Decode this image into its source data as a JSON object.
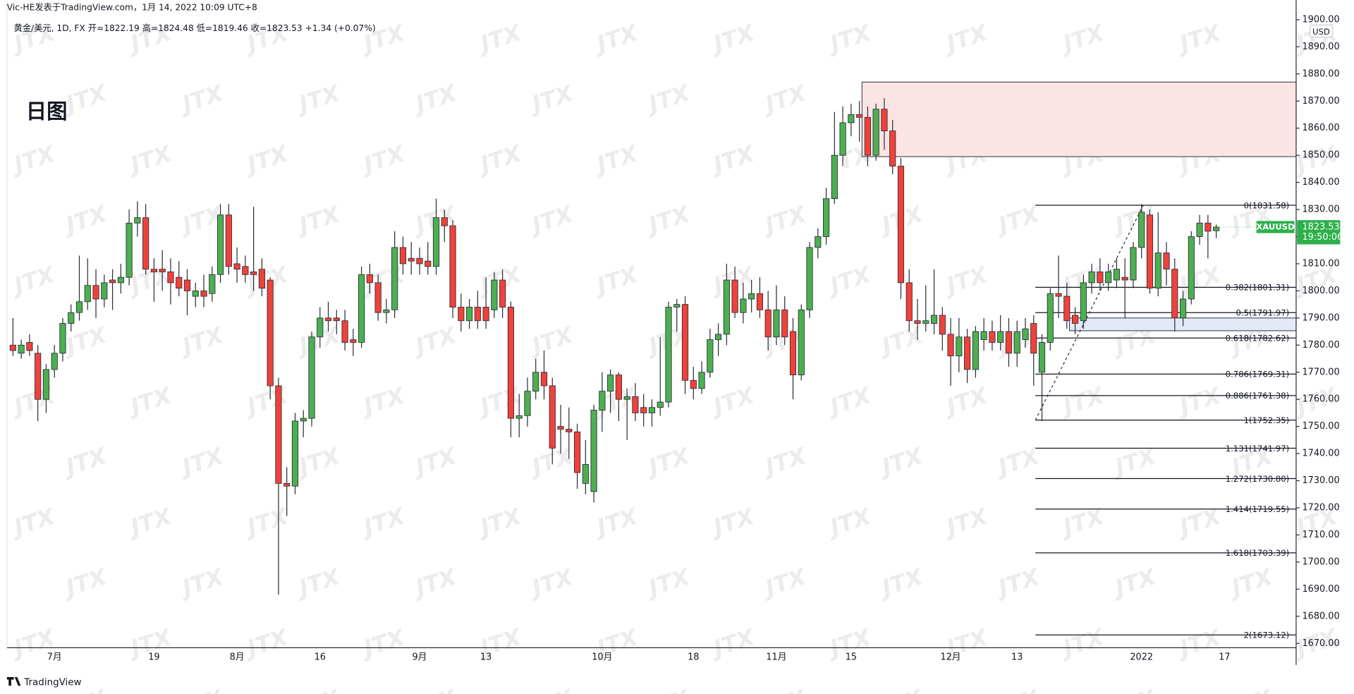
{
  "header": {
    "author_line": "Vic-HE发表于TradingView.com，1月 14, 2022 10:09 UTC+8",
    "symbol_line": "黄金/美元, 1D, FX  开=1822.19  高=1824.48  低=1819.46  收=1823.53  +1.34 (+0.07%)",
    "chart_label": "日图",
    "currency": "USD",
    "watermark": "JTX",
    "brand": "TradingView"
  },
  "chart_data": {
    "type": "candlestick",
    "categories": [
      null,
      null,
      null,
      null,
      null,
      "7月",
      null,
      null,
      null,
      null,
      null,
      null,
      null,
      null,
      null,
      null,
      null,
      "19",
      null,
      null,
      null,
      null,
      null,
      null,
      null,
      null,
      null,
      "8月",
      null,
      null,
      null,
      null,
      null,
      null,
      null,
      null,
      null,
      "16",
      null,
      null,
      null,
      null,
      null,
      null,
      null,
      null,
      null,
      null,
      null,
      "9月",
      null,
      null,
      null,
      null,
      null,
      null,
      null,
      "13",
      null,
      null,
      null,
      null,
      null,
      null,
      null,
      null,
      null,
      null,
      null,
      null,
      null,
      "10月",
      null,
      null,
      null,
      null,
      null,
      null,
      null,
      null,
      null,
      null,
      "18",
      null,
      null,
      null,
      null,
      null,
      null,
      null,
      null,
      null,
      "11月",
      null,
      null,
      null,
      null,
      null,
      null,
      null,
      null,
      "15",
      null,
      null,
      null,
      null,
      null,
      null,
      null,
      null,
      null,
      null,
      null,
      "12月",
      null,
      null,
      null,
      null,
      null,
      null,
      null,
      "13",
      null,
      null,
      null,
      null,
      null,
      null,
      null,
      null,
      null,
      null,
      null,
      null,
      null,
      null,
      "2022",
      null,
      null,
      null,
      null,
      null,
      null,
      null,
      null,
      null,
      "17"
    ],
    "open": [
      1780,
      1777,
      1781,
      1777,
      1760,
      1771,
      1777,
      1788,
      1792,
      1796,
      1802,
      1797,
      1804,
      1803,
      1805,
      1825,
      1827,
      1808,
      1808,
      1807,
      1805,
      1804,
      1798,
      1800,
      1799,
      1806,
      1828,
      1810,
      1809,
      1807,
      1808,
      1804,
      1765,
      1729,
      1728,
      1752,
      1753,
      1783,
      1790,
      1790,
      1789,
      1782,
      1781,
      1806,
      1803,
      1792,
      1793,
      1816,
      1812,
      1812,
      1811,
      1809,
      1827,
      1824,
      1794,
      1789,
      1794,
      1794,
      1793,
      1804,
      1794,
      1753,
      1754,
      1763,
      1770,
      1765,
      1750,
      1749,
      1748,
      1729,
      1726,
      1756,
      1763,
      1769,
      1760,
      1761,
      1757,
      1755,
      1757,
      1759,
      1794,
      1795,
      1767,
      1764,
      1770,
      1782,
      1784,
      1804,
      1792,
      1797,
      1799,
      1793,
      1783,
      1793,
      1785,
      1769,
      1793,
      1816,
      1820,
      1834,
      1850,
      1862,
      1865,
      1864,
      1850,
      1867,
      1859,
      1846,
      1803,
      1789,
      1788,
      1788,
      1791,
      1784,
      1776,
      1783,
      1771,
      1782,
      1785,
      1781,
      1785,
      1777,
      1782,
      1788,
      1770,
      1781,
      1799,
      1798,
      1791,
      1789,
      1803,
      1807,
      1803,
      1804,
      1805,
      1804,
      1816,
      1828,
      1801,
      1814,
      1808,
      1790,
      1797,
      1820,
      1825,
      1822.19,
      null
    ],
    "high": [
      1790,
      1782,
      1784,
      1780,
      1773,
      1780,
      1790,
      1795,
      1813,
      1812,
      1808,
      1806,
      1808,
      1810,
      1830,
      1833,
      1832,
      1812,
      1815,
      1812,
      1811,
      1808,
      1803,
      1806,
      1809,
      1832,
      1832,
      1816,
      1813,
      1831,
      1812,
      1805,
      1768,
      1735,
      1755,
      1756,
      1785,
      1794,
      1796,
      1793,
      1793,
      1786,
      1809,
      1810,
      1806,
      1797,
      1822,
      1820,
      1818,
      1816,
      1818,
      1834,
      1830,
      1826,
      1799,
      1797,
      1800,
      1805,
      1807,
      1808,
      1796,
      1762,
      1768,
      1775,
      1778,
      1768,
      1758,
      1757,
      1751,
      1745,
      1758,
      1770,
      1771,
      1770,
      1764,
      1766,
      1762,
      1760,
      1783,
      1796,
      1797,
      1798,
      1772,
      1774,
      1786,
      1788,
      1810,
      1809,
      1803,
      1804,
      1805,
      1800,
      1802,
      1798,
      1790,
      1795,
      1818,
      1823,
      1838,
      1866,
      1868,
      1869,
      1870,
      1868,
      1869,
      1871,
      1863,
      1849,
      1808,
      1797,
      1802,
      1808,
      1794,
      1790,
      1790,
      1786,
      1787,
      1790,
      1789,
      1791,
      1790,
      1789,
      1790,
      1791,
      1784,
      1801,
      1813,
      1803,
      1794,
      1806,
      1810,
      1812,
      1810,
      1812,
      1812,
      1818,
      1832,
      1830,
      1829,
      1818,
      1812,
      1800,
      1822,
      1828,
      1828,
      1824.48,
      null
    ],
    "low": [
      1776,
      1775,
      1776,
      1752,
      1755,
      1768,
      1774,
      1785,
      1789,
      1793,
      1790,
      1794,
      1793,
      1799,
      1802,
      1820,
      1806,
      1796,
      1800,
      1795,
      1798,
      1791,
      1794,
      1794,
      1796,
      1803,
      1806,
      1803,
      1803,
      1800,
      1798,
      1760,
      1688,
      1717,
      1725,
      1746,
      1750,
      1779,
      1785,
      1784,
      1778,
      1776,
      1779,
      1799,
      1789,
      1788,
      1790,
      1806,
      1806,
      1806,
      1806,
      1806,
      1818,
      1790,
      1785,
      1786,
      1786,
      1786,
      1790,
      1790,
      1746,
      1746,
      1750,
      1760,
      1760,
      1736,
      1740,
      1738,
      1727,
      1725,
      1722,
      1748,
      1755,
      1752,
      1745,
      1752,
      1750,
      1750,
      1754,
      1757,
      1785,
      1762,
      1760,
      1762,
      1768,
      1776,
      1780,
      1790,
      1788,
      1792,
      1790,
      1778,
      1780,
      1780,
      1760,
      1767,
      1790,
      1812,
      1817,
      1832,
      1846,
      1857,
      1855,
      1846,
      1848,
      1852,
      1843,
      1797,
      1785,
      1782,
      1785,
      1784,
      1778,
      1765,
      1770,
      1766,
      1768,
      1778,
      1778,
      1778,
      1772,
      1772,
      1779,
      1765,
      1752,
      1778,
      1790,
      1786,
      1784,
      1786,
      1799,
      1800,
      1800,
      1801,
      1790,
      1801,
      1812,
      1799,
      1798,
      1802,
      1785,
      1787,
      1795,
      1817,
      1812,
      1819.46,
      null
    ],
    "close": [
      1778,
      1780,
      1778,
      1760,
      1771,
      1777,
      1788,
      1792,
      1796,
      1802,
      1797,
      1803,
      1803,
      1805,
      1825,
      1827,
      1808,
      1807,
      1807,
      1803,
      1801,
      1800,
      1800,
      1798,
      1806,
      1828,
      1809,
      1808,
      1806,
      1806,
      1801,
      1765,
      1729,
      1728,
      1752,
      1753,
      1783,
      1790,
      1789,
      1789,
      1781,
      1781,
      1806,
      1803,
      1792,
      1793,
      1816,
      1810,
      1811,
      1810,
      1809,
      1827,
      1824,
      1794,
      1789,
      1794,
      1789,
      1789,
      1804,
      1794,
      1753,
      1754,
      1763,
      1770,
      1765,
      1742,
      1749,
      1748,
      1733,
      1736,
      1756,
      1763,
      1769,
      1760,
      1761,
      1755,
      1755,
      1757,
      1759,
      1794,
      1795,
      1767,
      1764,
      1770,
      1782,
      1784,
      1804,
      1792,
      1797,
      1799,
      1793,
      1783,
      1793,
      1783,
      1769,
      1793,
      1816,
      1820,
      1834,
      1850,
      1862,
      1865,
      1864,
      1850,
      1867,
      1859,
      1846,
      1803,
      1789,
      1788,
      1789,
      1791,
      1784,
      1776,
      1783,
      1771,
      1785,
      1785,
      1781,
      1785,
      1777,
      1785,
      1786,
      1777,
      1781,
      1799,
      1798,
      1789,
      1788,
      1803,
      1807,
      1803,
      1807,
      1808,
      1804,
      1816,
      1829,
      1801,
      1814,
      1808,
      1790,
      1797,
      1820,
      1825,
      1822,
      1823.53,
      null
    ],
    "up_color": "#4caf50",
    "down_color": "#f0413a",
    "wick_color": "#2a2e39",
    "ylim": [
      1668.41,
      1907.26
    ],
    "yticks": [
      {
        "value": 1670,
        "label": "1670.00"
      },
      {
        "value": 1680,
        "label": "1680.00"
      },
      {
        "value": 1690,
        "label": "1690.00"
      },
      {
        "value": 1700,
        "label": "1700.00"
      },
      {
        "value": 1710,
        "label": "1710.00"
      },
      {
        "value": 1720,
        "label": "1720.00"
      },
      {
        "value": 1730,
        "label": "1730.00"
      },
      {
        "value": 1740,
        "label": "1740.00"
      },
      {
        "value": 1750,
        "label": "1750.00"
      },
      {
        "value": 1760,
        "label": "1760.00"
      },
      {
        "value": 1770,
        "label": "1770.00"
      },
      {
        "value": 1780,
        "label": "1780.00"
      },
      {
        "value": 1790,
        "label": "1790.00"
      },
      {
        "value": 1800,
        "label": "1800.00"
      },
      {
        "value": 1810,
        "label": "1810.00"
      },
      {
        "value": 1820,
        "label": "1820.00"
      },
      {
        "value": 1830,
        "label": "1830.00"
      },
      {
        "value": 1840,
        "label": "1840.00"
      },
      {
        "value": 1850,
        "label": "1850.00"
      },
      {
        "value": 1860,
        "label": "1860.00"
      },
      {
        "value": 1870,
        "label": "1870.00"
      },
      {
        "value": 1880,
        "label": "1880.00"
      },
      {
        "value": 1890,
        "label": "1890.00"
      },
      {
        "value": 1900,
        "label": "1900.00"
      }
    ],
    "grid": false,
    "zones": [
      {
        "from_index": 102,
        "range": [
          1849.5,
          1877
        ],
        "color": "#fde4e4"
      },
      {
        "from_index": 127,
        "range": [
          1785.3,
          1790
        ],
        "color": "#e4e9f8"
      }
    ],
    "trendline": {
      "points": [
        [
          123,
          1752.35
        ],
        [
          136,
          1831.58
        ]
      ]
    },
    "fibonacci": {
      "from_index": 123,
      "levels": [
        {
          "label": "0(1831.58)",
          "value": 1831.58
        },
        {
          "label": "0.382(1801.31)",
          "value": 1801.31
        },
        {
          "label": "0.5(1791.97)",
          "value": 1791.97
        },
        {
          "label": "0.618(1782.62)",
          "value": 1782.62
        },
        {
          "label": "0.786(1769.31)",
          "value": 1769.31
        },
        {
          "label": "0.886(1761.38)",
          "value": 1761.38
        },
        {
          "label": "1(1752.35)",
          "value": 1752.35
        },
        {
          "label": "1.131(1741.97)",
          "value": 1741.97
        },
        {
          "label": "1.272(1730.80)",
          "value": 1730.8
        },
        {
          "label": "1.414(1719.55)",
          "value": 1719.55
        },
        {
          "label": "1.618(1703.39)",
          "value": 1703.39
        },
        {
          "label": "2(1673.12)",
          "value": 1673.12
        }
      ]
    },
    "price_tag": {
      "symbol": "XAUUSD",
      "value": 1823.53,
      "countdown": "19:50:06",
      "color": "#2db04b"
    }
  }
}
